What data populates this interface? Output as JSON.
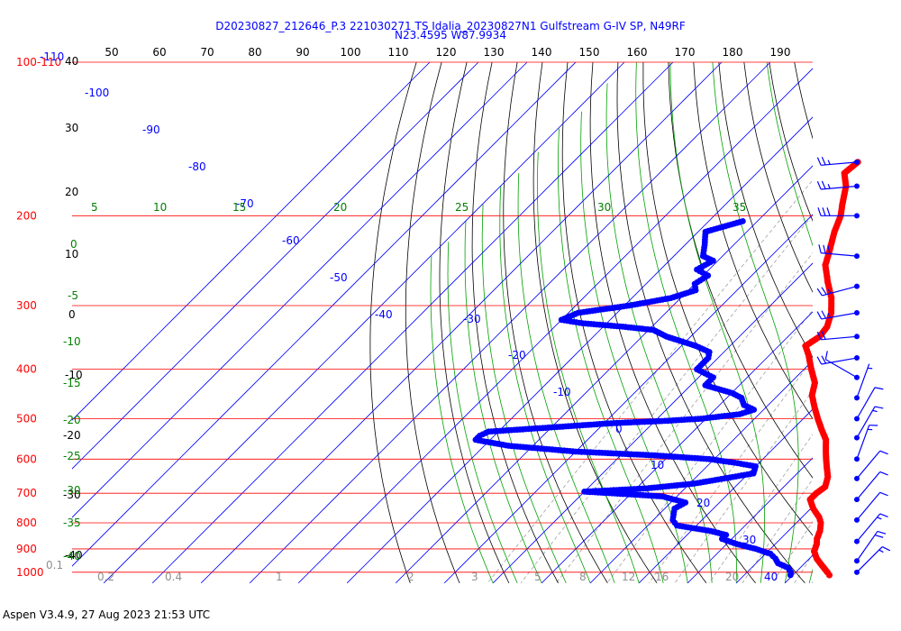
{
  "chart_data": {
    "type": "skew-t",
    "title": "D20230827_212646_P.3 221030271 TS Idalia_20230827N1 Gulfstream G-IV SP, N49RF",
    "subtitle": "N23.4595 W87.9934",
    "footer": "Aspen V3.4.9, 27 Aug 2023  21:53 UTC",
    "pressure_labels": [
      {
        "p": 100,
        "label": "100-110"
      },
      {
        "p": 200,
        "label": "200"
      },
      {
        "p": 300,
        "label": "300"
      },
      {
        "p": 400,
        "label": "400"
      },
      {
        "p": 500,
        "label": "500"
      },
      {
        "p": 600,
        "label": "600"
      },
      {
        "p": 700,
        "label": "700"
      },
      {
        "p": 800,
        "label": "800"
      },
      {
        "p": 900,
        "label": "900"
      },
      {
        "p": 1000,
        "label": "1000"
      }
    ],
    "top_axis_labels": [
      "50",
      "60",
      "70",
      "80",
      "90",
      "100",
      "110",
      "120",
      "130",
      "140",
      "150",
      "160",
      "170",
      "180",
      "190"
    ],
    "left_axis_labels": [
      "40",
      "30",
      "20",
      "10",
      "0",
      "-10",
      "-20",
      "-30",
      "-40"
    ],
    "isotherm_labels": [
      "-110",
      "-100",
      "-90",
      "-80",
      "-70",
      "-60",
      "-50",
      "-40",
      "-30",
      "-20",
      "-10",
      "0",
      "10",
      "20",
      "30",
      "40"
    ],
    "moist_adiabat_labels": [
      "5",
      "10",
      "15",
      "20",
      "25",
      "30",
      "35"
    ],
    "green_left_labels": [
      "0",
      "-5",
      "-10",
      "-15",
      "-20",
      "-25",
      "-30",
      "-35",
      "-40"
    ],
    "mixing_ratio_labels": [
      "0.1",
      "0.2",
      "0.4",
      "1",
      "2",
      "3",
      "5",
      "8",
      "12",
      "16",
      "20"
    ],
    "temperature": [
      {
        "p": 157,
        "t": -51.5
      },
      {
        "p": 165,
        "t": -52
      },
      {
        "p": 175,
        "t": -49
      },
      {
        "p": 190,
        "t": -46
      },
      {
        "p": 200,
        "t": -44
      },
      {
        "p": 215,
        "t": -42
      },
      {
        "p": 235,
        "t": -39
      },
      {
        "p": 250,
        "t": -37
      },
      {
        "p": 270,
        "t": -33
      },
      {
        "p": 290,
        "t": -29
      },
      {
        "p": 310,
        "t": -26
      },
      {
        "p": 330,
        "t": -24
      },
      {
        "p": 345,
        "t": -23.5
      },
      {
        "p": 360,
        "t": -24.5
      },
      {
        "p": 375,
        "t": -22
      },
      {
        "p": 400,
        "t": -18.5
      },
      {
        "p": 425,
        "t": -15
      },
      {
        "p": 450,
        "t": -13
      },
      {
        "p": 475,
        "t": -10
      },
      {
        "p": 500,
        "t": -7
      },
      {
        "p": 525,
        "t": -4
      },
      {
        "p": 550,
        "t": -1
      },
      {
        "p": 575,
        "t": 1
      },
      {
        "p": 600,
        "t": 3
      },
      {
        "p": 625,
        "t": 5
      },
      {
        "p": 650,
        "t": 7
      },
      {
        "p": 680,
        "t": 8.5
      },
      {
        "p": 700,
        "t": 8
      },
      {
        "p": 720,
        "t": 8
      },
      {
        "p": 750,
        "t": 10.5
      },
      {
        "p": 780,
        "t": 13.5
      },
      {
        "p": 800,
        "t": 15
      },
      {
        "p": 830,
        "t": 16.5
      },
      {
        "p": 860,
        "t": 17.5
      },
      {
        "p": 880,
        "t": 18.5
      },
      {
        "p": 910,
        "t": 19.5
      },
      {
        "p": 940,
        "t": 21.5
      },
      {
        "p": 970,
        "t": 24
      },
      {
        "p": 1000,
        "t": 26.5
      },
      {
        "p": 1013,
        "t": 27.5
      }
    ],
    "dewpoint": [
      {
        "p": 205,
        "t": -63
      },
      {
        "p": 215,
        "t": -68.5
      },
      {
        "p": 228,
        "t": -66
      },
      {
        "p": 240,
        "t": -64
      },
      {
        "p": 245,
        "t": -61
      },
      {
        "p": 255,
        "t": -62.5
      },
      {
        "p": 262,
        "t": -59
      },
      {
        "p": 272,
        "t": -60
      },
      {
        "p": 280,
        "t": -58.5
      },
      {
        "p": 290,
        "t": -62
      },
      {
        "p": 300,
        "t": -69
      },
      {
        "p": 310,
        "t": -78
      },
      {
        "p": 320,
        "t": -80
      },
      {
        "p": 325,
        "t": -75
      },
      {
        "p": 330,
        "t": -66
      },
      {
        "p": 335,
        "t": -59
      },
      {
        "p": 340,
        "t": -57
      },
      {
        "p": 345,
        "t": -55
      },
      {
        "p": 360,
        "t": -47
      },
      {
        "p": 370,
        "t": -43
      },
      {
        "p": 380,
        "t": -42
      },
      {
        "p": 400,
        "t": -42
      },
      {
        "p": 415,
        "t": -37
      },
      {
        "p": 430,
        "t": -37
      },
      {
        "p": 445,
        "t": -30
      },
      {
        "p": 455,
        "t": -27
      },
      {
        "p": 470,
        "t": -25
      },
      {
        "p": 480,
        "t": -22
      },
      {
        "p": 490,
        "t": -24
      },
      {
        "p": 500,
        "t": -31
      },
      {
        "p": 505,
        "t": -38
      },
      {
        "p": 510,
        "t": -48
      },
      {
        "p": 520,
        "t": -60
      },
      {
        "p": 530,
        "t": -72
      },
      {
        "p": 540,
        "t": -73
      },
      {
        "p": 550,
        "t": -73
      },
      {
        "p": 565,
        "t": -65
      },
      {
        "p": 580,
        "t": -50
      },
      {
        "p": 590,
        "t": -33
      },
      {
        "p": 600,
        "t": -21
      },
      {
        "p": 610,
        "t": -15
      },
      {
        "p": 620,
        "t": -10
      },
      {
        "p": 640,
        "t": -9
      },
      {
        "p": 655,
        "t": -14
      },
      {
        "p": 670,
        "t": -19
      },
      {
        "p": 685,
        "t": -28
      },
      {
        "p": 695,
        "t": -40
      },
      {
        "p": 700,
        "t": -34
      },
      {
        "p": 710,
        "t": -23
      },
      {
        "p": 730,
        "t": -17
      },
      {
        "p": 750,
        "t": -18
      },
      {
        "p": 770,
        "t": -17
      },
      {
        "p": 790,
        "t": -16
      },
      {
        "p": 810,
        "t": -14
      },
      {
        "p": 830,
        "t": -6
      },
      {
        "p": 845,
        "t": -2
      },
      {
        "p": 860,
        "t": -2
      },
      {
        "p": 880,
        "t": 2
      },
      {
        "p": 900,
        "t": 7
      },
      {
        "p": 920,
        "t": 11
      },
      {
        "p": 940,
        "t": 13
      },
      {
        "p": 960,
        "t": 14.5
      },
      {
        "p": 980,
        "t": 17.5
      },
      {
        "p": 1000,
        "t": 19
      },
      {
        "p": 1013,
        "t": 19.5
      }
    ],
    "wind_barbs": [
      {
        "p": 157,
        "dir": 265,
        "kt": 25
      },
      {
        "p": 175,
        "dir": 265,
        "kt": 25
      },
      {
        "p": 200,
        "dir": 270,
        "kt": 30
      },
      {
        "p": 240,
        "dir": 275,
        "kt": 30
      },
      {
        "p": 275,
        "dir": 255,
        "kt": 25
      },
      {
        "p": 310,
        "dir": 260,
        "kt": 25
      },
      {
        "p": 345,
        "dir": 265,
        "kt": 20
      },
      {
        "p": 380,
        "dir": 260,
        "kt": 20
      },
      {
        "p": 415,
        "dir": 300,
        "kt": 10
      },
      {
        "p": 455,
        "dir": 20,
        "kt": 5
      },
      {
        "p": 500,
        "dir": 30,
        "kt": 10
      },
      {
        "p": 545,
        "dir": 30,
        "kt": 15
      },
      {
        "p": 600,
        "dir": 20,
        "kt": 15
      },
      {
        "p": 655,
        "dir": 40,
        "kt": 10
      },
      {
        "p": 720,
        "dir": 40,
        "kt": 10
      },
      {
        "p": 790,
        "dir": 40,
        "kt": 10
      },
      {
        "p": 870,
        "dir": 40,
        "kt": 15
      },
      {
        "p": 950,
        "dir": 35,
        "kt": 20
      },
      {
        "p": 1000,
        "dir": 45,
        "kt": 15
      }
    ]
  }
}
